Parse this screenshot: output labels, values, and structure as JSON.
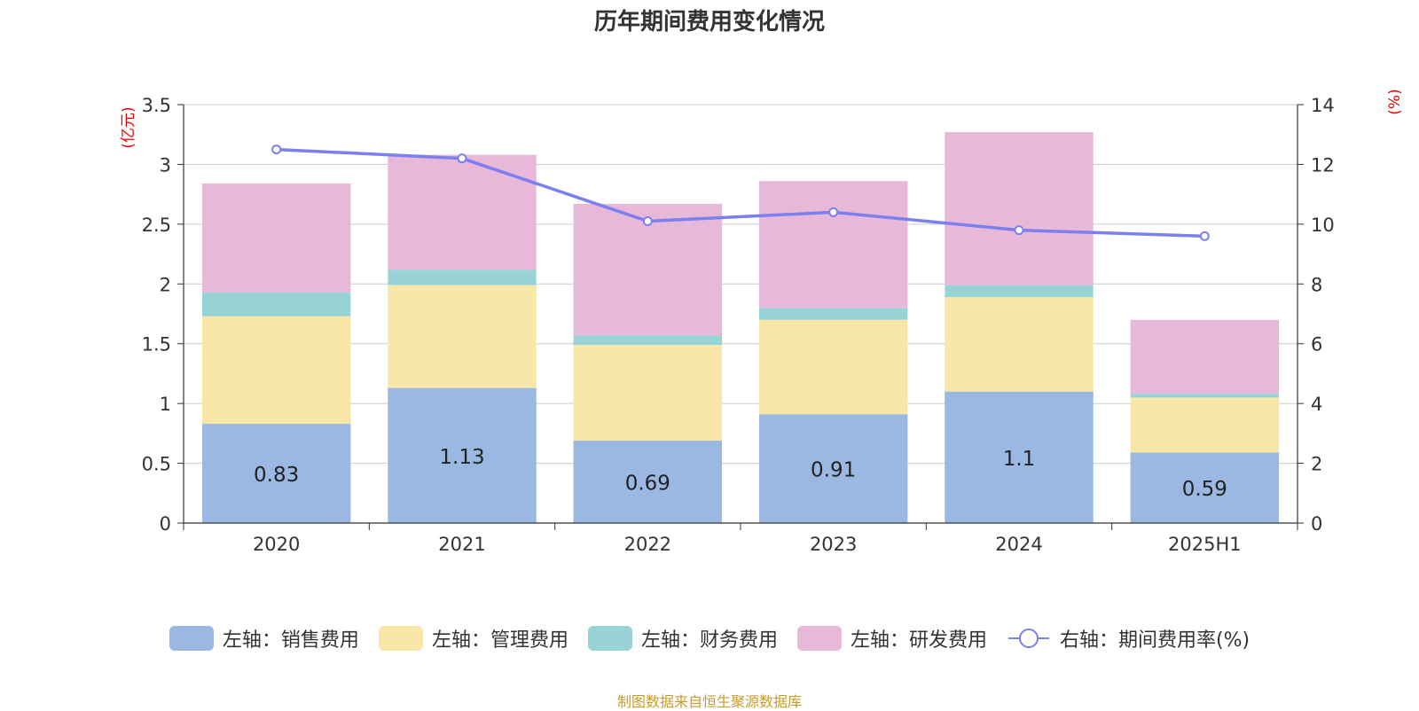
{
  "chart_data": {
    "type": "bar",
    "title": "历年期间费用变化情况",
    "left_axis_unit": "(亿元)",
    "right_axis_unit": "(%)",
    "categories": [
      "2020",
      "2021",
      "2022",
      "2023",
      "2024",
      "2025H1"
    ],
    "left_ylim": [
      0,
      3.5
    ],
    "left_ticks": [
      "0",
      "0.5",
      "1",
      "1.5",
      "2",
      "2.5",
      "3",
      "3.5"
    ],
    "right_ylim": [
      0,
      14
    ],
    "right_ticks": [
      "0",
      "2",
      "4",
      "6",
      "8",
      "10",
      "12",
      "14"
    ],
    "stacked": true,
    "grid": true,
    "legend_position": "bottom",
    "series": [
      {
        "name": "左轴：销售费用",
        "axis": "left",
        "type": "bar",
        "color": "#9bb8e2",
        "values": [
          0.83,
          1.13,
          0.69,
          0.91,
          1.1,
          0.59
        ],
        "labels": [
          "0.83",
          "1.13",
          "0.69",
          "0.91",
          "1.1",
          "0.59"
        ]
      },
      {
        "name": "左轴：管理费用",
        "axis": "left",
        "type": "bar",
        "color": "#f8e7a8",
        "values": [
          0.9,
          0.86,
          0.8,
          0.79,
          0.79,
          0.46
        ]
      },
      {
        "name": "左轴：财务费用",
        "axis": "left",
        "type": "bar",
        "color": "#98d4d6",
        "values": [
          0.2,
          0.13,
          0.08,
          0.1,
          0.1,
          0.03
        ]
      },
      {
        "name": "左轴：研发费用",
        "axis": "left",
        "type": "bar",
        "color": "#e8b8d8",
        "values": [
          0.91,
          0.96,
          1.1,
          1.06,
          1.28,
          0.62
        ]
      },
      {
        "name": "右轴：期间费用率(%)",
        "axis": "right",
        "type": "line",
        "color": "#7b7ff0",
        "values": [
          12.5,
          12.2,
          10.1,
          10.4,
          9.8,
          9.6
        ]
      }
    ],
    "source_note": "制图数据来自恒生聚源数据库"
  }
}
